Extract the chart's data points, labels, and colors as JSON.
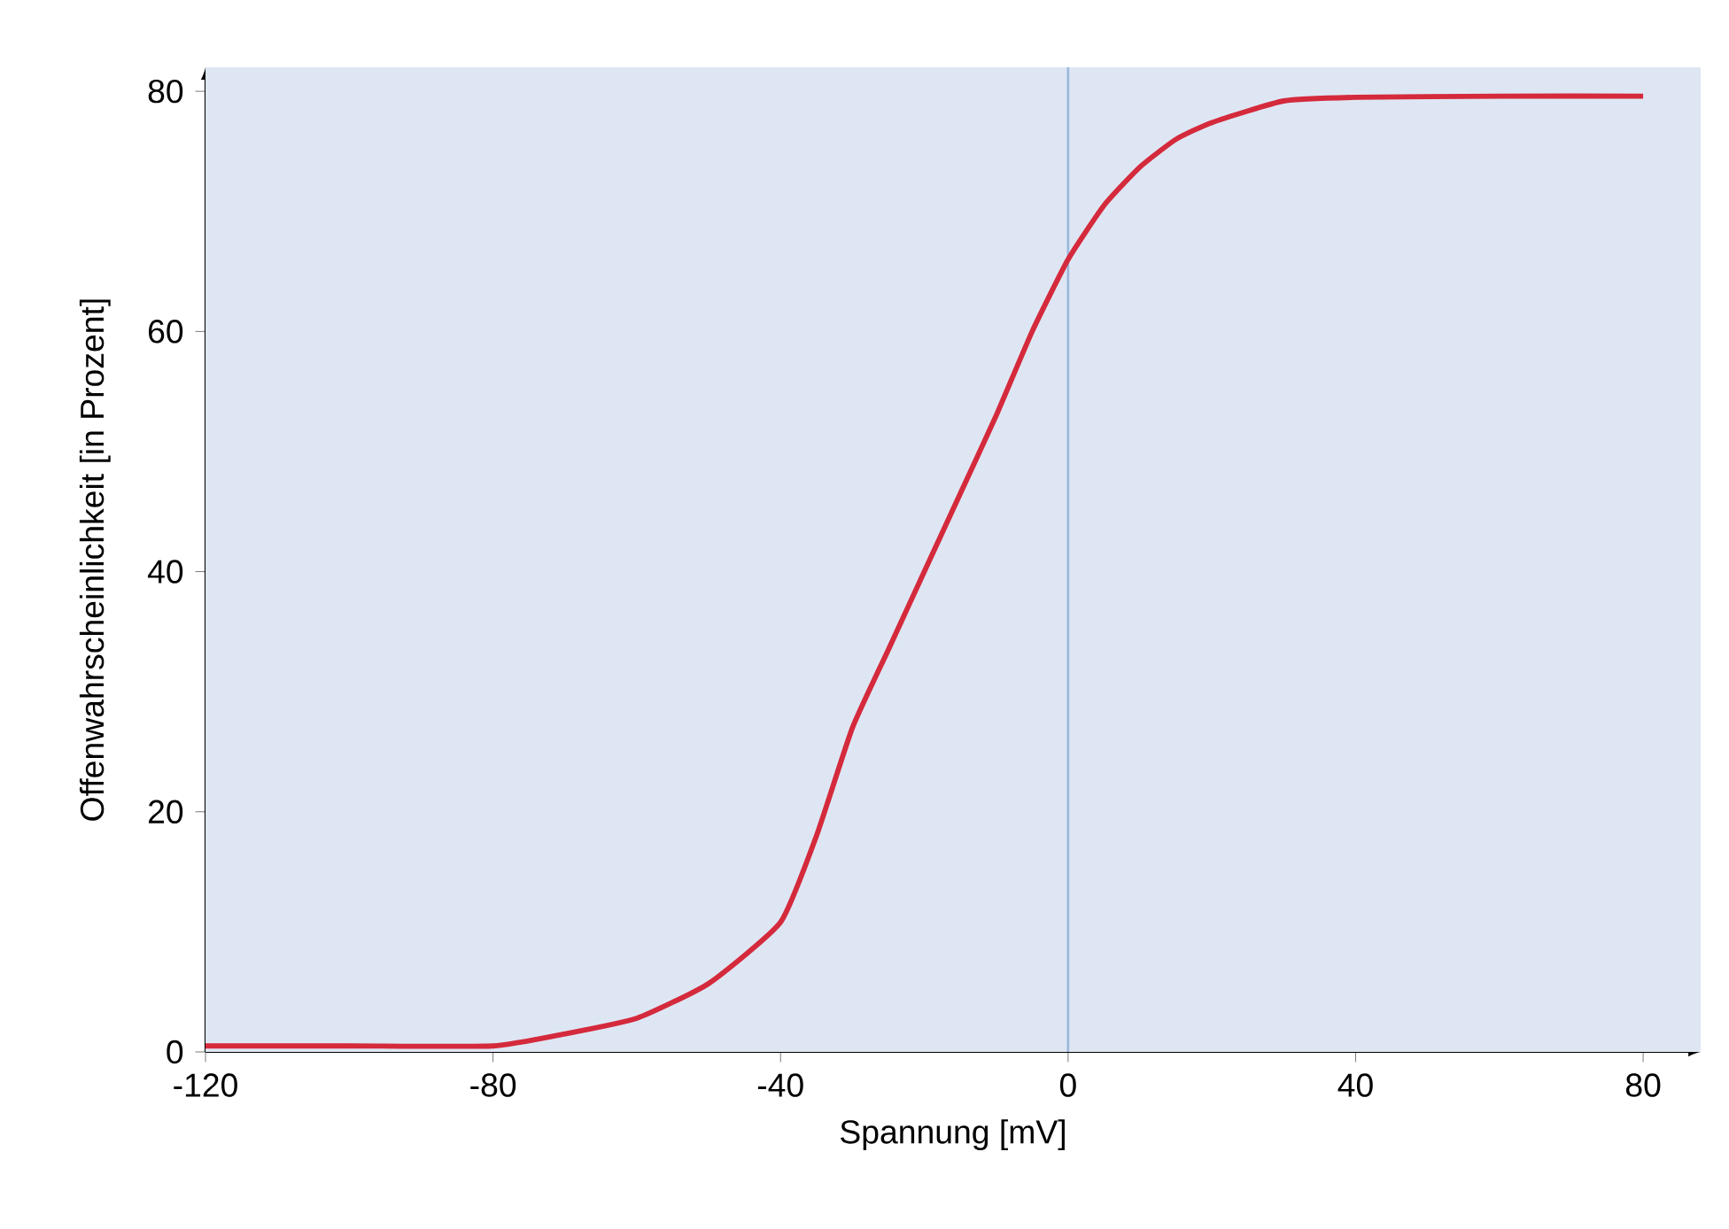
{
  "chart_data": {
    "type": "line",
    "xlabel": "Spannung [mV]",
    "ylabel": "Offenwahrscheinlichkeit [in Prozent]",
    "x": [
      -120,
      -100,
      -80,
      -70,
      -60,
      -50,
      -40,
      -35,
      -30,
      -25,
      -20,
      -15,
      -10,
      -5,
      0,
      5,
      10,
      15,
      20,
      30,
      40,
      60,
      80
    ],
    "series": [
      {
        "color": "#d42a3c",
        "values": [
          0.5,
          0.5,
          0.5,
          1.5,
          2.8,
          5.7,
          10.8,
          18,
          27,
          33.5,
          40,
          46.5,
          53,
          60,
          66,
          70.5,
          73.7,
          76,
          77.4,
          79.2,
          79.5,
          79.6,
          79.6
        ]
      }
    ],
    "xlim": [
      -120,
      88
    ],
    "ylim": [
      0,
      82
    ],
    "xticks": [
      -120,
      -80,
      -40,
      0,
      40,
      80
    ],
    "yticks": [
      0,
      20,
      40,
      60,
      80
    ],
    "ref_lines": [
      {
        "axis": "x",
        "value": 0,
        "color": "#9bb8dd"
      }
    ],
    "marker": "none",
    "line_style": "solid"
  }
}
